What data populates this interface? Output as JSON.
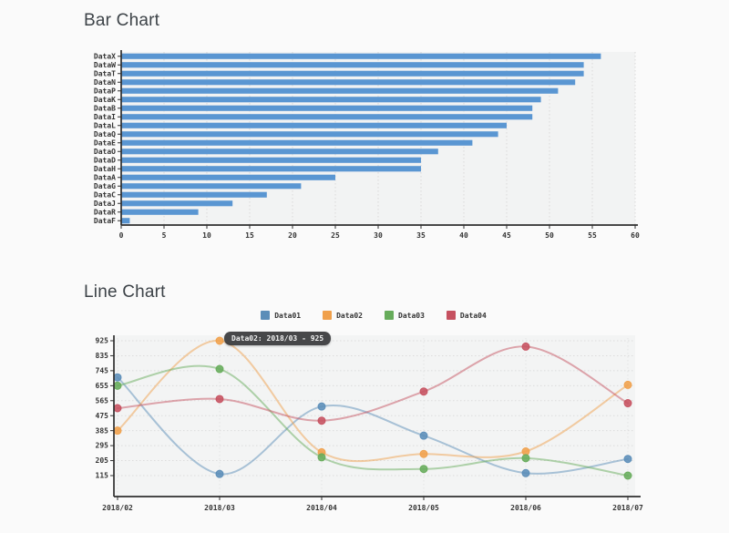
{
  "page": {
    "background": "#fafafa"
  },
  "chart_data": [
    {
      "type": "bar",
      "orientation": "horizontal",
      "title": "Bar Chart",
      "categories": [
        "DataX",
        "DataW",
        "DataT",
        "DataN",
        "DataP",
        "DataK",
        "DataB",
        "DataI",
        "DataL",
        "DataQ",
        "DataE",
        "DataO",
        "DataD",
        "DataH",
        "DataA",
        "DataG",
        "DataC",
        "DataJ",
        "DataR",
        "DataF"
      ],
      "values": [
        56,
        54,
        54,
        53,
        51,
        49,
        48,
        48,
        45,
        44,
        41,
        37,
        35,
        35,
        25,
        21,
        17,
        13,
        9,
        1
      ],
      "xlabel": "",
      "ylabel": "",
      "xlim": [
        0,
        60
      ],
      "xticks": [
        0,
        5,
        10,
        15,
        20,
        25,
        30,
        35,
        40,
        45,
        50,
        55,
        60
      ],
      "bar_color": "#5a96d2",
      "axis_color": "#2f2f2f",
      "grid": true,
      "legend": false
    },
    {
      "type": "line",
      "title": "Line Chart",
      "x": [
        "2018/02",
        "2018/03",
        "2018/04",
        "2018/05",
        "2018/06",
        "2018/07"
      ],
      "series": [
        {
          "name": "Data01",
          "color": "#5b8db8",
          "values": [
            705,
            125,
            530,
            355,
            130,
            215
          ]
        },
        {
          "name": "Data02",
          "color": "#f0a04b",
          "values": [
            385,
            925,
            255,
            245,
            260,
            660
          ]
        },
        {
          "name": "Data03",
          "color": "#67ac5b",
          "values": [
            655,
            755,
            225,
            155,
            220,
            115
          ]
        },
        {
          "name": "Data04",
          "color": "#c65160",
          "values": [
            520,
            575,
            445,
            620,
            890,
            550
          ]
        }
      ],
      "yticks": [
        925,
        835,
        745,
        655,
        565,
        475,
        385,
        295,
        205,
        115
      ],
      "ylim": [
        115,
        925
      ],
      "axis_color": "#2f2f2f",
      "grid": true,
      "legend_position": "top",
      "smooth": true,
      "tooltip": {
        "text": "Data02: 2018/03 - 925",
        "series": "Data02",
        "x": "2018/03",
        "value": 925
      }
    }
  ]
}
